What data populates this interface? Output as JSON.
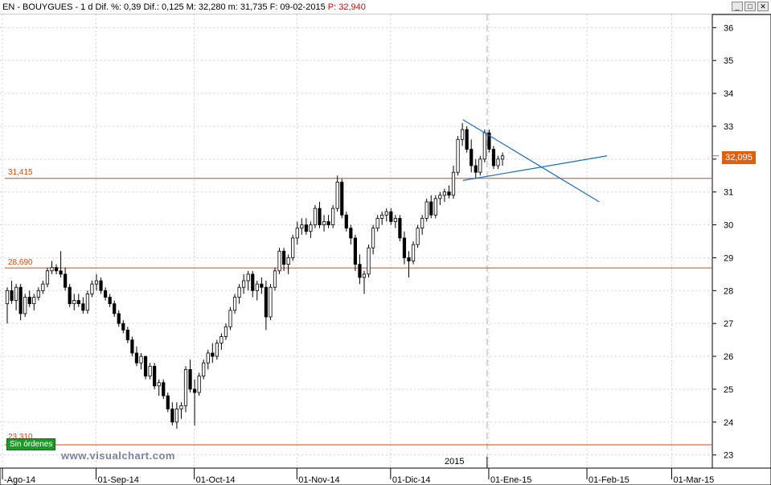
{
  "window": {
    "title_main": "EN - BOUYGUES - 1 d  Dif. %: 0,39  Dif.: 0,125  M: 32,280  m: 31,735  F: 09-02-2015",
    "title_p": "P: 32,940",
    "btn_min": "_",
    "btn_max": "□",
    "btn_close": "✕"
  },
  "watermark": "www.visualchart.com",
  "orders_label": "Sin órdenes",
  "last_price_label": "32,095",
  "levels": [
    {
      "label": "31,415",
      "value": 31.415
    },
    {
      "label": "28,690",
      "value": 28.69
    },
    {
      "label": "23,310",
      "value": 23.31
    }
  ],
  "year_label": "2015",
  "colors": {
    "up": "#ffffff",
    "down": "#000000",
    "level": "#d24a10",
    "trend": "#1a6ec0",
    "grid": "#d0d0d0"
  },
  "chart_data": {
    "type": "candlestick",
    "symbol": "EN - BOUYGUES",
    "interval": "1 d",
    "ylim": [
      22.6,
      36.4
    ],
    "y_ticks": [
      23,
      24,
      25,
      26,
      27,
      28,
      29,
      30,
      31,
      32,
      33,
      34,
      35,
      36
    ],
    "x_ticks": [
      "-Ago-14",
      "01-Sep-14",
      "01-Oct-14",
      "01-Nov-14",
      "01-Dic-14",
      "01-Ene-15",
      "01-Feb-15",
      "01-Mar-15"
    ],
    "x_tick_index": [
      0,
      21,
      43,
      66,
      87,
      109,
      131,
      150
    ],
    "year_separator_index": 107,
    "ohlc": [
      [
        27.6,
        28.1,
        27.0,
        28.0
      ],
      [
        28.0,
        28.3,
        27.6,
        27.7
      ],
      [
        27.7,
        28.2,
        27.4,
        28.1
      ],
      [
        28.1,
        28.2,
        27.1,
        27.3
      ],
      [
        27.3,
        27.9,
        27.2,
        27.8
      ],
      [
        27.8,
        28.0,
        27.5,
        27.6
      ],
      [
        27.6,
        27.9,
        27.4,
        27.8
      ],
      [
        27.8,
        28.1,
        27.7,
        28.0
      ],
      [
        28.0,
        28.3,
        27.9,
        28.2
      ],
      [
        28.2,
        28.7,
        28.1,
        28.6
      ],
      [
        28.6,
        28.9,
        28.5,
        28.7
      ],
      [
        28.7,
        28.8,
        28.5,
        28.6
      ],
      [
        28.6,
        29.2,
        28.4,
        28.5
      ],
      [
        28.5,
        28.7,
        28.0,
        28.1
      ],
      [
        28.1,
        28.2,
        27.5,
        27.6
      ],
      [
        27.6,
        27.9,
        27.4,
        27.7
      ],
      [
        27.7,
        27.9,
        27.5,
        27.6
      ],
      [
        27.6,
        27.8,
        27.3,
        27.4
      ],
      [
        27.4,
        28.0,
        27.3,
        27.9
      ],
      [
        27.9,
        28.3,
        27.8,
        28.2
      ],
      [
        28.2,
        28.5,
        28.0,
        28.3
      ],
      [
        28.3,
        28.4,
        27.9,
        28.0
      ],
      [
        28.0,
        28.1,
        27.7,
        27.8
      ],
      [
        27.8,
        27.9,
        27.5,
        27.6
      ],
      [
        27.6,
        27.7,
        27.2,
        27.3
      ],
      [
        27.3,
        27.4,
        26.9,
        27.0
      ],
      [
        27.0,
        27.1,
        26.7,
        26.8
      ],
      [
        26.8,
        26.9,
        26.4,
        26.5
      ],
      [
        26.5,
        26.6,
        26.0,
        26.1
      ],
      [
        26.1,
        26.3,
        25.7,
        25.8
      ],
      [
        25.8,
        26.1,
        25.6,
        26.0
      ],
      [
        26.0,
        26.0,
        25.3,
        25.4
      ],
      [
        25.4,
        25.8,
        25.3,
        25.7
      ],
      [
        25.7,
        25.8,
        25.0,
        25.1
      ],
      [
        25.1,
        25.3,
        24.8,
        25.2
      ],
      [
        25.2,
        25.3,
        24.7,
        24.8
      ],
      [
        24.8,
        24.9,
        24.3,
        24.4
      ],
      [
        24.4,
        24.6,
        23.9,
        24.0
      ],
      [
        24.0,
        24.6,
        23.8,
        24.4
      ],
      [
        24.4,
        24.6,
        24.1,
        24.5
      ],
      [
        24.5,
        25.7,
        24.3,
        25.6
      ],
      [
        25.6,
        25.9,
        24.9,
        25.0
      ],
      [
        25.0,
        25.3,
        23.9,
        24.9
      ],
      [
        24.9,
        25.5,
        24.8,
        25.4
      ],
      [
        25.4,
        25.9,
        25.3,
        25.8
      ],
      [
        25.8,
        26.2,
        25.6,
        26.1
      ],
      [
        26.1,
        26.4,
        25.8,
        26.0
      ],
      [
        26.0,
        26.5,
        25.9,
        26.4
      ],
      [
        26.4,
        26.7,
        26.2,
        26.6
      ],
      [
        26.6,
        27.0,
        26.5,
        26.9
      ],
      [
        26.9,
        27.5,
        26.8,
        27.4
      ],
      [
        27.4,
        27.9,
        27.3,
        27.8
      ],
      [
        27.8,
        28.2,
        27.6,
        28.1
      ],
      [
        28.1,
        28.5,
        27.9,
        28.3
      ],
      [
        28.3,
        28.6,
        28.0,
        28.5
      ],
      [
        28.5,
        28.6,
        27.8,
        28.0
      ],
      [
        28.0,
        28.3,
        27.7,
        28.2
      ],
      [
        28.2,
        28.4,
        27.9,
        28.1
      ],
      [
        28.1,
        28.3,
        26.8,
        27.2
      ],
      [
        27.2,
        28.2,
        27.1,
        28.1
      ],
      [
        28.1,
        28.7,
        28.0,
        28.6
      ],
      [
        28.6,
        29.3,
        28.5,
        29.2
      ],
      [
        29.2,
        29.3,
        28.6,
        28.8
      ],
      [
        28.8,
        29.1,
        28.5,
        29.0
      ],
      [
        29.0,
        29.7,
        28.9,
        29.6
      ],
      [
        29.6,
        30.1,
        29.4,
        29.9
      ],
      [
        29.9,
        30.2,
        29.7,
        30.0
      ],
      [
        30.0,
        30.2,
        29.7,
        29.8
      ],
      [
        29.8,
        30.1,
        29.6,
        30.0
      ],
      [
        30.0,
        30.6,
        29.9,
        30.5
      ],
      [
        30.5,
        30.7,
        29.9,
        30.0
      ],
      [
        30.0,
        30.3,
        29.8,
        30.1
      ],
      [
        30.1,
        30.3,
        29.9,
        30.0
      ],
      [
        30.0,
        30.6,
        29.9,
        30.5
      ],
      [
        30.5,
        31.5,
        30.4,
        31.3
      ],
      [
        31.3,
        31.4,
        30.2,
        30.3
      ],
      [
        30.3,
        30.4,
        29.8,
        29.9
      ],
      [
        29.9,
        30.0,
        29.4,
        29.6
      ],
      [
        29.6,
        29.7,
        28.6,
        28.8
      ],
      [
        28.8,
        29.1,
        28.2,
        28.4
      ],
      [
        28.4,
        28.6,
        27.9,
        28.5
      ],
      [
        28.5,
        29.4,
        28.4,
        29.3
      ],
      [
        29.3,
        30.0,
        29.1,
        29.9
      ],
      [
        29.9,
        30.3,
        29.8,
        30.2
      ],
      [
        30.2,
        30.4,
        30.0,
        30.3
      ],
      [
        30.3,
        30.5,
        30.1,
        30.4
      ],
      [
        30.4,
        30.5,
        30.0,
        30.1
      ],
      [
        30.1,
        30.3,
        29.9,
        30.2
      ],
      [
        30.2,
        30.3,
        29.5,
        29.6
      ],
      [
        29.6,
        29.8,
        28.8,
        29.0
      ],
      [
        29.0,
        29.2,
        28.4,
        28.9
      ],
      [
        28.9,
        29.5,
        28.8,
        29.4
      ],
      [
        29.4,
        30.0,
        29.3,
        29.9
      ],
      [
        29.9,
        30.3,
        29.7,
        30.2
      ],
      [
        30.2,
        30.8,
        30.1,
        30.7
      ],
      [
        30.7,
        30.9,
        30.2,
        30.3
      ],
      [
        30.3,
        30.9,
        30.2,
        30.8
      ],
      [
        30.8,
        31.0,
        30.6,
        30.9
      ],
      [
        30.9,
        31.1,
        30.7,
        31.0
      ],
      [
        31.0,
        31.2,
        30.8,
        30.9
      ],
      [
        30.9,
        31.8,
        30.8,
        31.6
      ],
      [
        31.6,
        32.7,
        31.5,
        32.6
      ],
      [
        32.6,
        33.1,
        32.4,
        32.9
      ],
      [
        32.9,
        33.0,
        32.2,
        32.3
      ],
      [
        32.3,
        32.6,
        31.6,
        31.8
      ],
      [
        31.8,
        32.0,
        31.4,
        31.6
      ],
      [
        31.6,
        32.1,
        31.5,
        32.0
      ],
      [
        32.0,
        32.9,
        31.9,
        32.8
      ],
      [
        32.8,
        32.9,
        32.2,
        32.3
      ],
      [
        32.3,
        32.4,
        31.7,
        31.8
      ],
      [
        31.8,
        32.1,
        31.7,
        32.0
      ],
      [
        32.0,
        32.2,
        31.8,
        32.1
      ]
    ],
    "ohlc_order": [
      "open",
      "high",
      "low",
      "close"
    ],
    "trendlines": [
      {
        "from": [
          0.0,
          33.2
        ],
        "to": [
          18.0,
          30.7
        ]
      },
      {
        "from": [
          0.0,
          31.35
        ],
        "to": [
          19.0,
          32.1
        ]
      }
    ],
    "horizontal_levels": [
      31.415,
      28.69,
      23.31
    ]
  }
}
